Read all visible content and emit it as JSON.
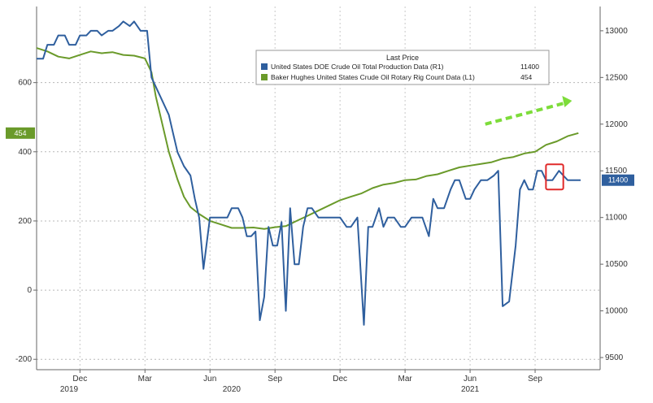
{
  "chart_data": {
    "type": "line",
    "legend": {
      "title": "Last Price",
      "entries": [
        {
          "label": "United States DOE Crude Oil Total Production Data (R1)",
          "last": "11400",
          "color": "#2f5f9e"
        },
        {
          "label": "Baker Hughes United States Crude Oil Rotary Rig Count Data (L1)",
          "last": "454",
          "color": "#6a9a2a"
        }
      ]
    },
    "left_axis": {
      "range": [
        -230,
        820
      ],
      "ticks": [
        "600",
        "400",
        "200",
        "0",
        "-200"
      ],
      "tick_values": [
        600,
        400,
        200,
        0,
        -200
      ]
    },
    "right_axis": {
      "range": [
        9370,
        13260
      ],
      "ticks": [
        "13000",
        "12500",
        "12000",
        "11500",
        "11000",
        "10500",
        "10000",
        "9500"
      ],
      "tick_values": [
        13000,
        12500,
        12000,
        11500,
        11000,
        10500,
        10000,
        9500
      ]
    },
    "x_axis": {
      "months": [
        "Dec",
        "Mar",
        "Jun",
        "Sep",
        "Dec",
        "Mar",
        "Jun",
        "Sep"
      ],
      "month_x": [
        0.5,
        3.5,
        6.5,
        9.5,
        12.5,
        15.5,
        18.5,
        21.5
      ],
      "years": [
        "2019",
        "2020",
        "2021"
      ],
      "year_x": [
        0.0,
        7.5,
        18.5
      ],
      "range": [
        -1.5,
        24.5
      ]
    },
    "series": [
      {
        "name": "Baker Hughes United States Crude Oil Rotary Rig Count Data",
        "axis": "left",
        "color": "#6a9a2a",
        "x": [
          -1.5,
          -1.0,
          -0.5,
          0.0,
          0.5,
          1.0,
          1.5,
          2.0,
          2.5,
          3.0,
          3.5,
          3.8,
          4.0,
          4.3,
          4.6,
          5.0,
          5.3,
          5.6,
          6.0,
          6.5,
          7.0,
          7.5,
          8.0,
          8.5,
          9.0,
          9.5,
          10.0,
          10.5,
          11.0,
          11.5,
          12.0,
          12.5,
          13.0,
          13.5,
          14.0,
          14.5,
          15.0,
          15.5,
          16.0,
          16.5,
          17.0,
          17.5,
          18.0,
          18.5,
          19.0,
          19.5,
          20.0,
          20.5,
          21.0,
          21.5,
          22.0,
          22.5,
          23.0,
          23.5
        ],
        "values": [
          700,
          690,
          675,
          670,
          680,
          690,
          685,
          688,
          680,
          678,
          670,
          630,
          560,
          480,
          400,
          320,
          270,
          240,
          220,
          200,
          190,
          180,
          180,
          181,
          177,
          182,
          185,
          200,
          215,
          230,
          245,
          260,
          270,
          280,
          295,
          305,
          310,
          318,
          320,
          330,
          335,
          345,
          355,
          360,
          365,
          370,
          380,
          385,
          395,
          400,
          420,
          430,
          445,
          454
        ]
      },
      {
        "name": "United States DOE Crude Oil Total Production Data",
        "axis": "right",
        "color": "#2f5f9e",
        "x": [
          -1.5,
          -1.2,
          -1.0,
          -0.7,
          -0.5,
          -0.2,
          0.0,
          0.3,
          0.5,
          0.8,
          1.0,
          1.3,
          1.5,
          1.8,
          2.0,
          2.3,
          2.5,
          2.8,
          3.0,
          3.3,
          3.6,
          3.8,
          4.0,
          4.3,
          4.6,
          4.8,
          5.0,
          5.3,
          5.6,
          5.8,
          6.0,
          6.2,
          6.5,
          6.8,
          7.0,
          7.3,
          7.5,
          7.8,
          8.0,
          8.2,
          8.4,
          8.6,
          8.8,
          9.0,
          9.2,
          9.4,
          9.6,
          9.8,
          10.0,
          10.2,
          10.4,
          10.6,
          10.8,
          11.0,
          11.2,
          11.5,
          11.8,
          12.0,
          12.2,
          12.5,
          12.8,
          13.0,
          13.3,
          13.6,
          13.8,
          14.0,
          14.3,
          14.5,
          14.7,
          15.0,
          15.3,
          15.5,
          15.8,
          16.0,
          16.3,
          16.6,
          16.8,
          17.0,
          17.3,
          17.6,
          17.8,
          18.0,
          18.3,
          18.5,
          18.7,
          19.0,
          19.3,
          19.6,
          19.8,
          20.0,
          20.3,
          20.6,
          20.8,
          21.0,
          21.2,
          21.4,
          21.6,
          21.8,
          22.0,
          22.3,
          22.6,
          22.8,
          23.0,
          23.3,
          23.6
        ],
        "values": [
          12700,
          12700,
          12850,
          12850,
          12950,
          12950,
          12850,
          12850,
          12950,
          12950,
          13000,
          13000,
          12950,
          13000,
          13000,
          13050,
          13100,
          13050,
          13100,
          13000,
          13000,
          12500,
          12400,
          12250,
          12100,
          11900,
          11700,
          11550,
          11450,
          11200,
          11000,
          10450,
          11000,
          11000,
          11000,
          11000,
          11100,
          11100,
          11000,
          10800,
          10800,
          10850,
          9900,
          10150,
          10900,
          10700,
          10700,
          10950,
          10000,
          11100,
          10500,
          10500,
          10900,
          11100,
          11100,
          11000,
          11000,
          11000,
          11000,
          11000,
          10900,
          10900,
          11000,
          9850,
          10900,
          10900,
          11100,
          10900,
          11000,
          11000,
          10900,
          10900,
          11000,
          11000,
          11000,
          10800,
          11200,
          11100,
          11100,
          11300,
          11400,
          11400,
          11200,
          11200,
          11300,
          11400,
          11400,
          11450,
          11500,
          10050,
          10100,
          10700,
          11300,
          11400,
          11300,
          11300,
          11500,
          11500,
          11400,
          11400,
          11500,
          11450,
          11400,
          11400,
          11400
        ]
      }
    ],
    "badges": [
      {
        "text": "454",
        "axis": "left",
        "value": 454,
        "color": "#6a9a2a"
      },
      {
        "text": "11400",
        "axis": "right",
        "value": 11400,
        "color": "#2f5f9e"
      }
    ],
    "annotations": {
      "arrow": {
        "from": [
          19.2,
          12000
        ],
        "to": [
          23.2,
          12250
        ],
        "axis": "right",
        "color": "#7ddc3a",
        "style": "dashed"
      },
      "highlight_box": {
        "x": [
          22.0,
          22.8
        ],
        "y": [
          11300,
          11570
        ],
        "axis": "right",
        "color": "#e02a2a"
      }
    }
  }
}
